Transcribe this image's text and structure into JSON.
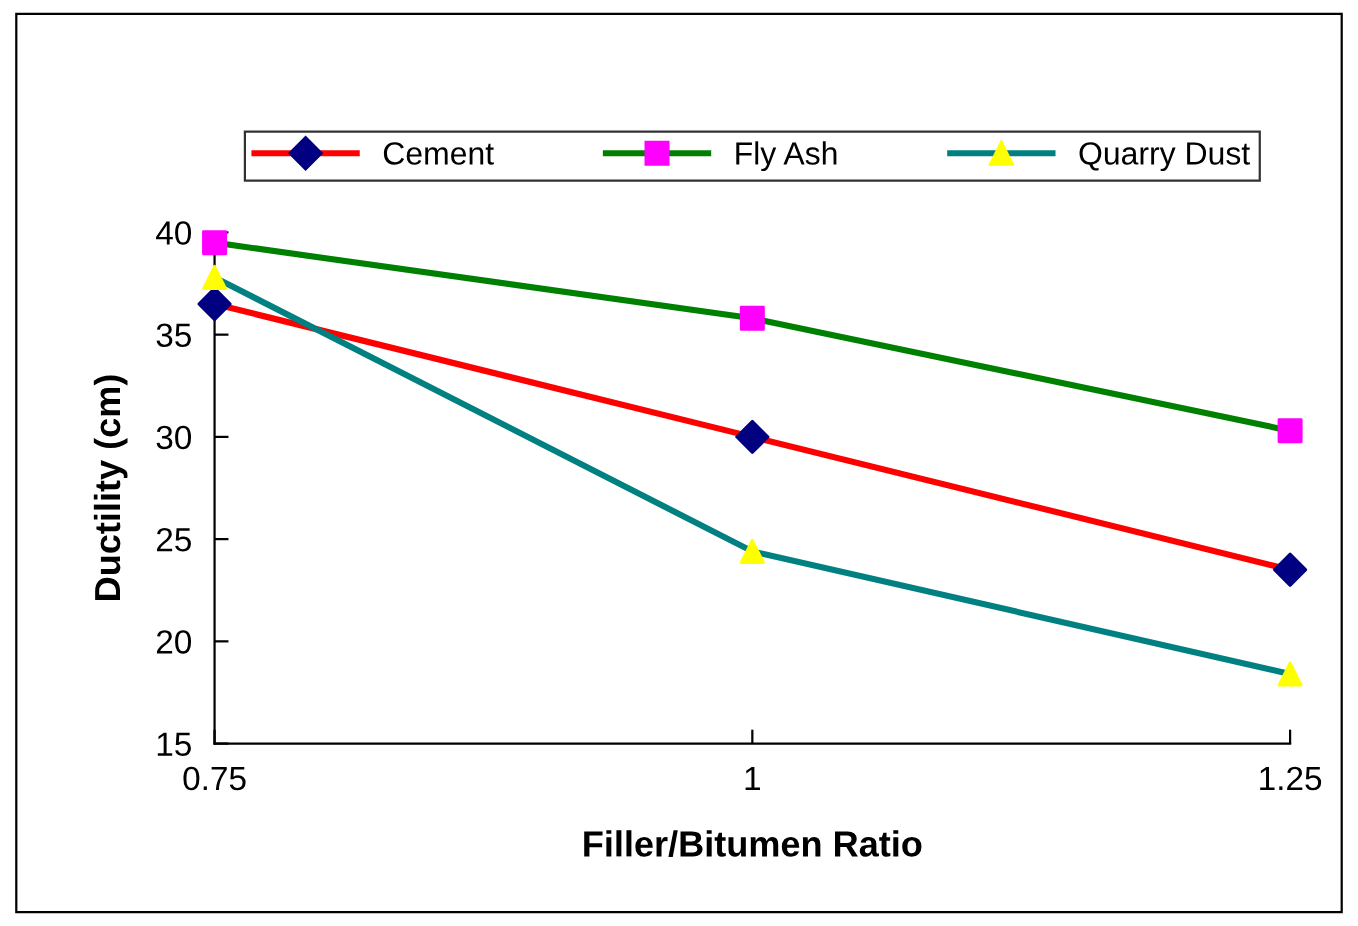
{
  "chart_data": {
    "type": "line",
    "xlabel": "Filler/Bitumen Ratio",
    "ylabel": "Ductility (cm)",
    "x": [
      0.75,
      1,
      1.25
    ],
    "series": [
      {
        "name": "Cement",
        "color": "#ff0000",
        "colors": [
          "#000080",
          "#000080",
          "#000080"
        ],
        "marker": "diamond",
        "values": [
          36.5,
          30.0,
          23.5
        ]
      },
      {
        "name": "Fly Ash",
        "color": "#008000",
        "colors": [
          "#ff00ff",
          "#ff00ff",
          "#ff00ff"
        ],
        "marker": "square",
        "values": [
          39.5,
          35.8,
          30.3
        ]
      },
      {
        "name": "Quarry Dust",
        "color": "#008080",
        "colors": [
          "#ffff00",
          "#ffff00",
          "#ffff00"
        ],
        "marker": "triangle",
        "values": [
          37.8,
          24.4,
          18.4
        ]
      }
    ],
    "xlim": [
      0.75,
      1.25
    ],
    "xticks": [
      0.75,
      1,
      1.25
    ],
    "ylim": [
      15,
      40
    ],
    "yticks": [
      15,
      20,
      25,
      30,
      35,
      40
    ],
    "grid": false,
    "legend": "top",
    "line_style": "solid"
  }
}
